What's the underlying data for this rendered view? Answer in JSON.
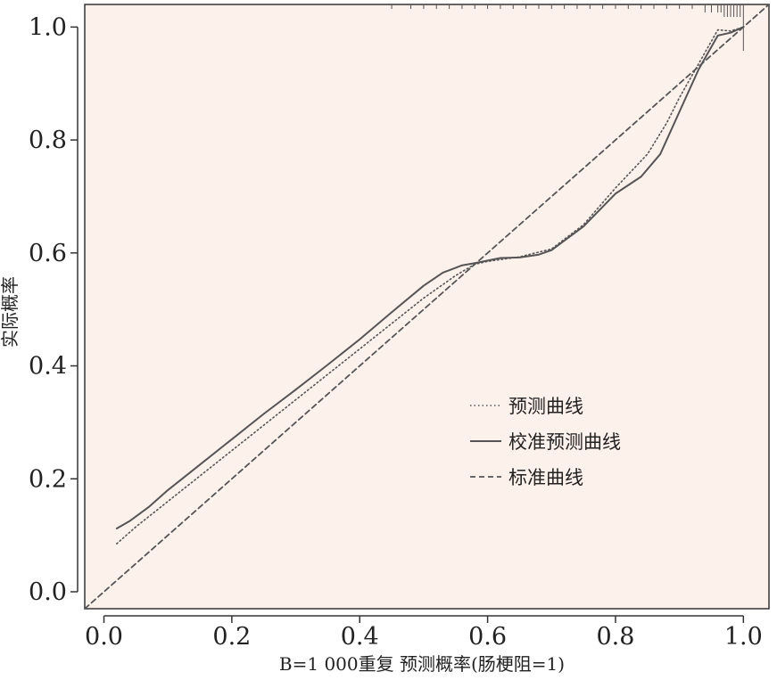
{
  "chart_data": {
    "type": "line",
    "title": "",
    "xlabel": "B=1 000重复   预测概率(肠梗阻=1)",
    "ylabel": "实际概率",
    "xlim": [
      -0.03,
      1.04
    ],
    "ylim": [
      -0.03,
      1.04
    ],
    "x_ticks": [
      0.0,
      0.2,
      0.4,
      0.6,
      0.8,
      1.0
    ],
    "x_tick_labels": [
      "0.0",
      "0.2",
      "0.4",
      "0.6",
      "0.8",
      "1.0"
    ],
    "y_ticks": [
      0.0,
      0.2,
      0.4,
      0.6,
      0.8,
      1.0
    ],
    "y_tick_labels": [
      "0.0",
      "0.2",
      "0.4",
      "0.6",
      "0.8",
      "1.0"
    ],
    "grid": false,
    "legend_position": "center-right",
    "colors": {
      "plot_background": "#fdf1ec",
      "line": "#555555",
      "axis": "#333333"
    },
    "series": [
      {
        "name": "预测曲线",
        "style": "dotted",
        "points": [
          [
            0.02,
            0.085
          ],
          [
            0.05,
            0.115
          ],
          [
            0.1,
            0.16
          ],
          [
            0.15,
            0.205
          ],
          [
            0.2,
            0.25
          ],
          [
            0.25,
            0.295
          ],
          [
            0.3,
            0.34
          ],
          [
            0.35,
            0.385
          ],
          [
            0.4,
            0.43
          ],
          [
            0.45,
            0.475
          ],
          [
            0.5,
            0.52
          ],
          [
            0.55,
            0.56
          ],
          [
            0.58,
            0.58
          ],
          [
            0.6,
            0.585
          ],
          [
            0.65,
            0.593
          ],
          [
            0.7,
            0.607
          ],
          [
            0.75,
            0.65
          ],
          [
            0.8,
            0.715
          ],
          [
            0.85,
            0.775
          ],
          [
            0.88,
            0.83
          ],
          [
            0.9,
            0.875
          ],
          [
            0.93,
            0.935
          ],
          [
            0.96,
            0.995
          ],
          [
            0.98,
            0.993
          ],
          [
            1.0,
            1.0
          ]
        ]
      },
      {
        "name": "校准预测曲线",
        "style": "solid",
        "points": [
          [
            0.02,
            0.112
          ],
          [
            0.04,
            0.125
          ],
          [
            0.07,
            0.15
          ],
          [
            0.1,
            0.18
          ],
          [
            0.15,
            0.225
          ],
          [
            0.2,
            0.27
          ],
          [
            0.25,
            0.315
          ],
          [
            0.3,
            0.358
          ],
          [
            0.35,
            0.402
          ],
          [
            0.4,
            0.447
          ],
          [
            0.45,
            0.495
          ],
          [
            0.5,
            0.542
          ],
          [
            0.53,
            0.565
          ],
          [
            0.56,
            0.578
          ],
          [
            0.58,
            0.582
          ],
          [
            0.62,
            0.591
          ],
          [
            0.65,
            0.592
          ],
          [
            0.68,
            0.597
          ],
          [
            0.7,
            0.605
          ],
          [
            0.75,
            0.647
          ],
          [
            0.8,
            0.705
          ],
          [
            0.84,
            0.735
          ],
          [
            0.87,
            0.775
          ],
          [
            0.9,
            0.85
          ],
          [
            0.93,
            0.925
          ],
          [
            0.96,
            0.985
          ],
          [
            0.98,
            0.99
          ],
          [
            1.0,
            1.0
          ]
        ]
      },
      {
        "name": "标准曲线",
        "style": "dashed",
        "points": [
          [
            -0.03,
            -0.03
          ],
          [
            1.04,
            1.04
          ]
        ]
      }
    ],
    "rug_ticks_top": [
      0.45,
      0.48,
      0.5,
      0.52,
      0.54,
      0.56,
      0.58,
      0.6,
      0.62,
      0.64,
      0.66,
      0.68,
      0.7,
      0.72,
      0.74,
      0.76,
      0.78,
      0.8,
      0.82,
      0.84,
      0.86,
      0.88,
      0.9,
      0.92,
      0.94,
      0.95,
      0.96,
      0.965,
      0.97,
      0.975,
      0.98,
      0.985,
      0.99,
      0.995,
      1.0
    ]
  }
}
